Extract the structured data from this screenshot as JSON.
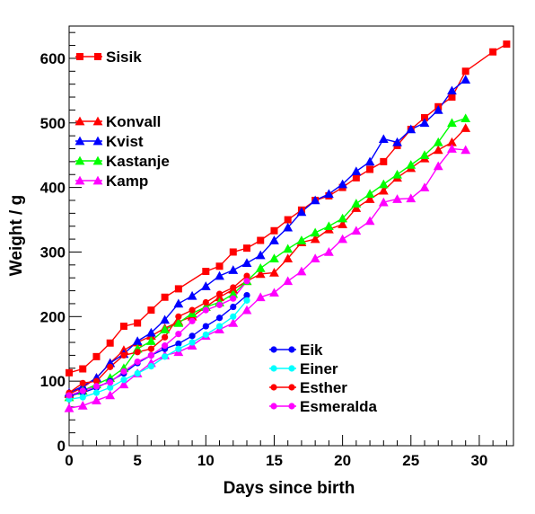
{
  "chart_data": {
    "type": "line",
    "xlabel": "Days since birth",
    "ylabel": "Weight / g",
    "xlim": [
      0,
      32.5
    ],
    "ylim": [
      0,
      650
    ],
    "xticks": [
      0,
      5,
      10,
      15,
      20,
      25,
      30
    ],
    "yticks": [
      0,
      100,
      200,
      300,
      400,
      500,
      600
    ],
    "grid": false,
    "legends": [
      {
        "position": "top-left",
        "entries": [
          "Sisik"
        ]
      },
      {
        "position": "upper-left",
        "entries": [
          "Konvall",
          "Kvist",
          "Kastanje",
          "Kamp"
        ]
      },
      {
        "position": "bottom-center",
        "entries": [
          "Eik",
          "Einer",
          "Esther",
          "Esmeralda"
        ]
      }
    ],
    "series": [
      {
        "name": "Sisik",
        "color": "#ff0000",
        "marker": "square",
        "x": [
          0,
          1,
          2,
          3,
          4,
          5,
          6,
          7,
          8,
          10,
          11,
          12,
          13,
          14,
          15,
          16,
          17,
          18,
          19,
          20,
          21,
          22,
          23,
          24,
          25,
          26,
          27,
          28,
          29,
          31,
          32
        ],
        "y": [
          113,
          119,
          138,
          159,
          185,
          190,
          210,
          230,
          243,
          270,
          278,
          300,
          306,
          318,
          333,
          350,
          365,
          380,
          387,
          400,
          415,
          428,
          440,
          465,
          490,
          508,
          525,
          540,
          580,
          610,
          622
        ]
      },
      {
        "name": "Konvall",
        "color": "#ff0000",
        "marker": "triangle",
        "x": [
          0,
          1,
          2,
          3,
          4,
          5,
          6,
          7,
          8,
          9,
          10,
          11,
          12,
          13,
          14,
          15,
          16,
          17,
          18,
          19,
          20,
          21,
          22,
          23,
          24,
          25,
          26,
          27,
          28,
          29
        ],
        "y": [
          80,
          90,
          105,
          128,
          148,
          160,
          170,
          182,
          192,
          200,
          215,
          230,
          242,
          255,
          266,
          268,
          290,
          315,
          320,
          335,
          343,
          368,
          382,
          395,
          415,
          430,
          445,
          458,
          470,
          492
        ]
      },
      {
        "name": "Kvist",
        "color": "#0000ff",
        "marker": "triangle",
        "x": [
          0,
          1,
          2,
          3,
          4,
          5,
          6,
          7,
          8,
          9,
          10,
          11,
          12,
          13,
          14,
          15,
          16,
          17,
          18,
          19,
          20,
          21,
          22,
          23,
          24,
          25,
          26,
          27,
          28,
          29
        ],
        "y": [
          82,
          92,
          105,
          128,
          142,
          162,
          175,
          195,
          220,
          232,
          247,
          263,
          272,
          283,
          295,
          318,
          338,
          362,
          380,
          390,
          405,
          425,
          440,
          475,
          470,
          490,
          500,
          520,
          550,
          567
        ]
      },
      {
        "name": "Kastanje",
        "color": "#00ff00",
        "marker": "triangle",
        "x": [
          0,
          1,
          2,
          3,
          4,
          5,
          6,
          7,
          8,
          9,
          10,
          11,
          12,
          13,
          14,
          15,
          16,
          17,
          18,
          19,
          20,
          21,
          22,
          23,
          24,
          25,
          26,
          27,
          28,
          29
        ],
        "y": [
          75,
          85,
          95,
          105,
          120,
          150,
          162,
          180,
          190,
          205,
          215,
          222,
          235,
          255,
          275,
          290,
          305,
          318,
          330,
          340,
          352,
          375,
          390,
          405,
          420,
          435,
          450,
          470,
          500,
          507
        ]
      },
      {
        "name": "Kamp",
        "color": "#ff00ff",
        "marker": "triangle",
        "x": [
          0,
          1,
          2,
          3,
          4,
          5,
          6,
          7,
          8,
          9,
          10,
          11,
          12,
          13,
          14,
          15,
          16,
          17,
          18,
          19,
          20,
          21,
          22,
          23,
          24,
          25,
          26,
          27,
          28,
          29
        ],
        "y": [
          58,
          62,
          70,
          78,
          95,
          112,
          128,
          140,
          145,
          155,
          170,
          180,
          190,
          210,
          230,
          237,
          255,
          270,
          290,
          300,
          320,
          333,
          348,
          377,
          382,
          383,
          400,
          433,
          460,
          458
        ]
      },
      {
        "name": "Eik",
        "color": "#0000ff",
        "marker": "circle",
        "x": [
          0,
          1,
          2,
          3,
          4,
          5,
          6,
          7,
          8,
          9,
          10,
          11,
          12,
          13
        ],
        "y": [
          78,
          82,
          90,
          100,
          112,
          128,
          140,
          150,
          158,
          170,
          185,
          198,
          215,
          233
        ]
      },
      {
        "name": "Einer",
        "color": "#00ffff",
        "marker": "circle",
        "x": [
          0,
          1,
          2,
          3,
          4,
          5,
          6,
          7,
          8,
          9,
          10,
          11,
          12,
          13
        ],
        "y": [
          72,
          75,
          82,
          90,
          102,
          112,
          123,
          138,
          150,
          160,
          172,
          185,
          200,
          225
        ]
      },
      {
        "name": "Esther",
        "color": "#ff0000",
        "marker": "circle",
        "x": [
          0,
          1,
          2,
          3,
          4,
          5,
          6,
          7,
          8,
          9,
          10,
          11,
          12,
          13
        ],
        "y": [
          82,
          97,
          100,
          122,
          140,
          145,
          150,
          168,
          200,
          210,
          222,
          235,
          245,
          263
        ]
      },
      {
        "name": "Esmeralda",
        "color": "#ff00ff",
        "marker": "circle",
        "x": [
          0,
          1,
          2,
          3,
          4,
          5,
          6,
          7,
          8,
          9,
          10,
          11,
          12,
          13
        ],
        "y": [
          78,
          85,
          92,
          98,
          115,
          130,
          140,
          155,
          173,
          193,
          210,
          218,
          228,
          255
        ]
      }
    ]
  }
}
